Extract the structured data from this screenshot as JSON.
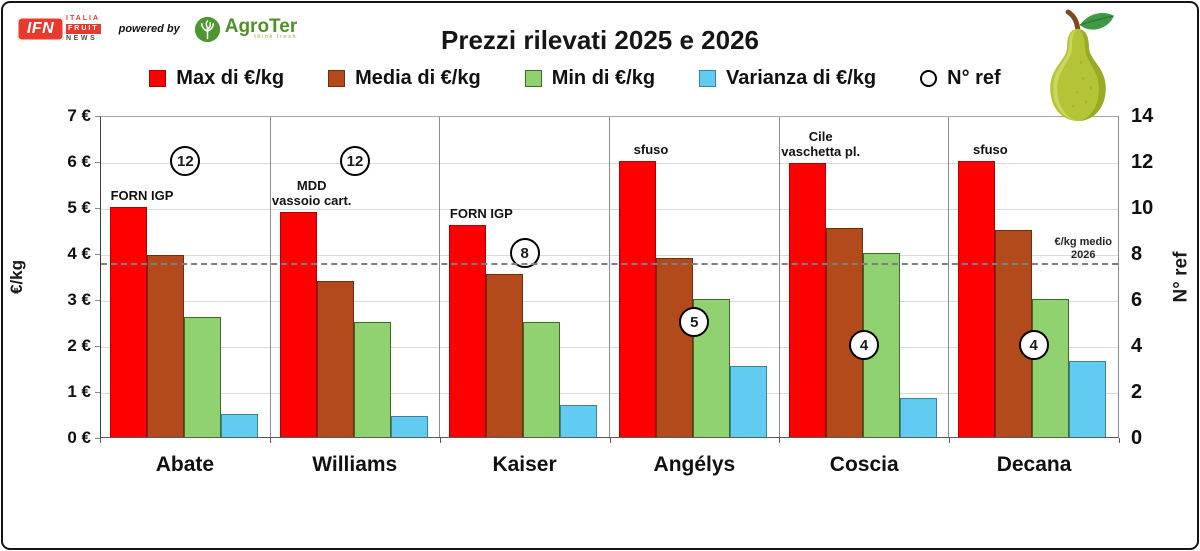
{
  "header": {
    "title": "Prezzi rilevati 2025 e 2026",
    "ifn_logo": {
      "monogram": "IFN",
      "lines": [
        "ITALIA",
        "FRUIT",
        "NEWS"
      ]
    },
    "powered_by": "powered by",
    "agroter": {
      "name": "AgroTer",
      "tagline": "think fresh"
    }
  },
  "legend": [
    {
      "label": "Max di €/kg",
      "shape": "square",
      "fill": "#FE0000",
      "border": "#AD0000"
    },
    {
      "label": "Media di €/kg",
      "shape": "square",
      "fill": "#B34A1B",
      "border": "#6E2E10"
    },
    {
      "label": "Min di €/kg",
      "shape": "square",
      "fill": "#90D26F",
      "border": "#3E6B2A"
    },
    {
      "label": "Varianza di €/kg",
      "shape": "square",
      "fill": "#62CBF1",
      "border": "#3B81A0"
    },
    {
      "label": "N° ref",
      "shape": "circle",
      "fill": "#FFFFFF",
      "border": "#000000"
    }
  ],
  "chart_data": {
    "type": "bar",
    "title": "Prezzi rilevati 2025 e 2026",
    "categories": [
      "Abate",
      "Williams",
      "Kaiser",
      "Angélys",
      "Coscia",
      "Decana"
    ],
    "series": [
      {
        "name": "Max di €/kg",
        "axis": "left",
        "values": [
          5.0,
          4.9,
          4.6,
          6.0,
          5.95,
          6.0
        ]
      },
      {
        "name": "Media di €/kg",
        "axis": "left",
        "values": [
          3.95,
          3.4,
          3.55,
          3.9,
          4.55,
          4.5
        ]
      },
      {
        "name": "Min di €/kg",
        "axis": "left",
        "values": [
          2.6,
          2.5,
          2.5,
          3.0,
          4.0,
          3.0
        ]
      },
      {
        "name": "Varianza di €/kg",
        "axis": "left",
        "values": [
          0.5,
          0.45,
          0.7,
          1.55,
          0.85,
          1.65
        ]
      },
      {
        "name": "N° ref",
        "axis": "right",
        "marker": "circle",
        "values": [
          12,
          12,
          8,
          5,
          4,
          4
        ]
      }
    ],
    "bar_annotations": [
      [
        "FORN IGP"
      ],
      [
        "MDD",
        "vassoio cart."
      ],
      [
        "FORN IGP"
      ],
      [
        "sfuso"
      ],
      [
        "Cile",
        "vaschetta pl."
      ],
      [
        "sfuso"
      ]
    ],
    "left_axis": {
      "label": "€/kg",
      "min": 0,
      "max": 7,
      "tick_step": 1,
      "tick_suffix": " €"
    },
    "right_axis": {
      "label": "N° ref",
      "min": 0,
      "max": 14,
      "tick_step": 2
    },
    "reference_line": {
      "value": 3.75,
      "label_lines": [
        "€/kg medio",
        "2026"
      ]
    },
    "grid": true,
    "legend_position": "top"
  },
  "colors": {
    "series_fill": [
      "#FE0000",
      "#B34A1B",
      "#90D26F",
      "#62CBF1"
    ],
    "series_border": [
      "#AD0000",
      "#6E2E10",
      "#3E6B2A",
      "#3B81A0"
    ],
    "gridline": "#d9d9d9",
    "reference_line": "#7f7f7f",
    "brand_red": "#E8392D",
    "agroter_green": "#4E9631"
  }
}
